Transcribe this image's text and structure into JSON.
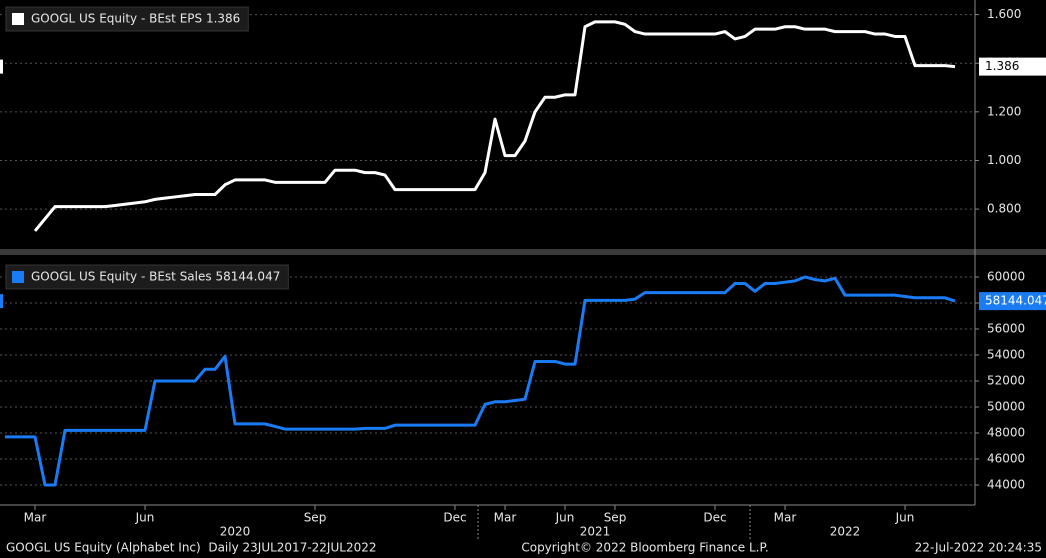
{
  "chart_data": [
    {
      "type": "line",
      "series": [
        {
          "name": "GOOGL US Equity - BEst EPS 1.386",
          "color": "#ffffff",
          "values": [
            null,
            null,
            null,
            0.71,
            0.76,
            0.81,
            0.81,
            0.81,
            0.81,
            0.81,
            0.81,
            0.815,
            0.82,
            0.825,
            0.83,
            0.84,
            0.845,
            0.85,
            0.855,
            0.86,
            0.86,
            0.86,
            0.9,
            0.92,
            0.92,
            0.92,
            0.92,
            0.91,
            0.91,
            0.91,
            0.91,
            0.91,
            0.91,
            0.96,
            0.96,
            0.96,
            0.95,
            0.95,
            0.94,
            0.88,
            0.88,
            0.88,
            0.88,
            0.88,
            0.88,
            0.88,
            0.88,
            0.88,
            0.95,
            1.17,
            1.02,
            1.02,
            1.08,
            1.2,
            1.26,
            1.26,
            1.27,
            1.27,
            1.55,
            1.57,
            1.57,
            1.57,
            1.56,
            1.53,
            1.52,
            1.52,
            1.52,
            1.52,
            1.52,
            1.52,
            1.52,
            1.52,
            1.53,
            1.5,
            1.51,
            1.54,
            1.54,
            1.54,
            1.55,
            1.55,
            1.54,
            1.54,
            1.54,
            1.53,
            1.53,
            1.53,
            1.53,
            1.52,
            1.52,
            1.51,
            1.51,
            1.39,
            1.39,
            1.39,
            1.39,
            1.386
          ]
        }
      ],
      "ylim": [
        0.64,
        1.66
      ],
      "yticks": [
        {
          "value": 0.8,
          "label": "0.800"
        },
        {
          "value": 1.0,
          "label": "1.000"
        },
        {
          "value": 1.2,
          "label": "1.200"
        },
        {
          "value": 1.4,
          "label": "1.400"
        },
        {
          "value": 1.6,
          "label": "1.600"
        }
      ],
      "grid": true
    },
    {
      "type": "line",
      "categories": [
        null,
        null,
        null,
        "Mar",
        null,
        null,
        null,
        null,
        null,
        null,
        null,
        null,
        null,
        null,
        "Jun",
        null,
        null,
        null,
        null,
        null,
        null,
        null,
        null,
        null,
        null,
        null,
        null,
        null,
        null,
        null,
        null,
        "Sep",
        null,
        null,
        null,
        null,
        null,
        null,
        null,
        null,
        null,
        null,
        null,
        null,
        null,
        "Dec",
        null,
        null,
        null,
        null,
        "Mar",
        null,
        null,
        null,
        null,
        null,
        "Jun",
        null,
        null,
        null,
        null,
        "Sep",
        null,
        null,
        null,
        null,
        null,
        null,
        null,
        null,
        null,
        "Dec",
        null,
        null,
        null,
        null,
        null,
        null,
        "Mar",
        null,
        null,
        null,
        null,
        null,
        null,
        null,
        null,
        null,
        null,
        null,
        "Jun",
        null,
        null,
        null,
        null,
        null
      ],
      "category_groups": [
        null,
        null,
        null,
        null,
        null,
        null,
        null,
        null,
        null,
        null,
        null,
        null,
        null,
        null,
        null,
        null,
        null,
        null,
        null,
        null,
        null,
        null,
        null,
        "2020",
        null,
        null,
        null,
        null,
        null,
        null,
        null,
        null,
        null,
        null,
        null,
        null,
        null,
        null,
        null,
        null,
        null,
        null,
        null,
        null,
        null,
        null,
        null,
        null,
        null,
        null,
        null,
        null,
        null,
        null,
        null,
        null,
        null,
        null,
        null,
        "2021",
        null,
        null,
        null,
        null,
        null,
        null,
        null,
        null,
        null,
        null,
        null,
        null,
        null,
        null,
        null,
        null,
        null,
        null,
        null,
        null,
        null,
        null,
        null,
        null,
        "2022",
        null,
        null,
        null,
        null,
        null,
        null,
        null,
        null,
        null,
        null,
        null
      ],
      "series": [
        {
          "name": "GOOGL US Equity - BEst Sales 58144.047",
          "color": "#1a7cf5",
          "values": [
            47700,
            47700,
            47700,
            47700,
            44000,
            44000,
            48200,
            48200,
            48200,
            48200,
            48200,
            48200,
            48200,
            48200,
            48200,
            52000,
            52000,
            52000,
            52000,
            52000,
            52900,
            52900,
            53900,
            48700,
            48700,
            48700,
            48700,
            48500,
            48300,
            48300,
            48300,
            48300,
            48300,
            48300,
            48300,
            48300,
            48350,
            48350,
            48350,
            48600,
            48600,
            48600,
            48600,
            48600,
            48600,
            48600,
            48600,
            48600,
            50200,
            50400,
            50400,
            50500,
            50600,
            53500,
            53500,
            53500,
            53300,
            53300,
            58200,
            58200,
            58200,
            58200,
            58200,
            58300,
            58800,
            58800,
            58800,
            58800,
            58800,
            58800,
            58800,
            58800,
            58800,
            59500,
            59500,
            58900,
            59500,
            59500,
            59600,
            59700,
            60000,
            59800,
            59700,
            59900,
            58600,
            58600,
            58600,
            58600,
            58600,
            58600,
            58500,
            58400,
            58400,
            58400,
            58400,
            58144.047
          ]
        }
      ],
      "ylim": [
        42460,
        61460
      ],
      "yticks": [
        44000,
        46000,
        48000,
        50000,
        52000,
        54000,
        56000,
        58000,
        60000
      ],
      "grid": true
    }
  ],
  "footer": {
    "left": "GOOGL US Equity (Alphabet Inc)  Daily 23JUL2017-22JUL2022",
    "center": "Copyright© 2022 Bloomberg Finance L.P.",
    "right": "22-Jul-2022 20:24:35"
  }
}
